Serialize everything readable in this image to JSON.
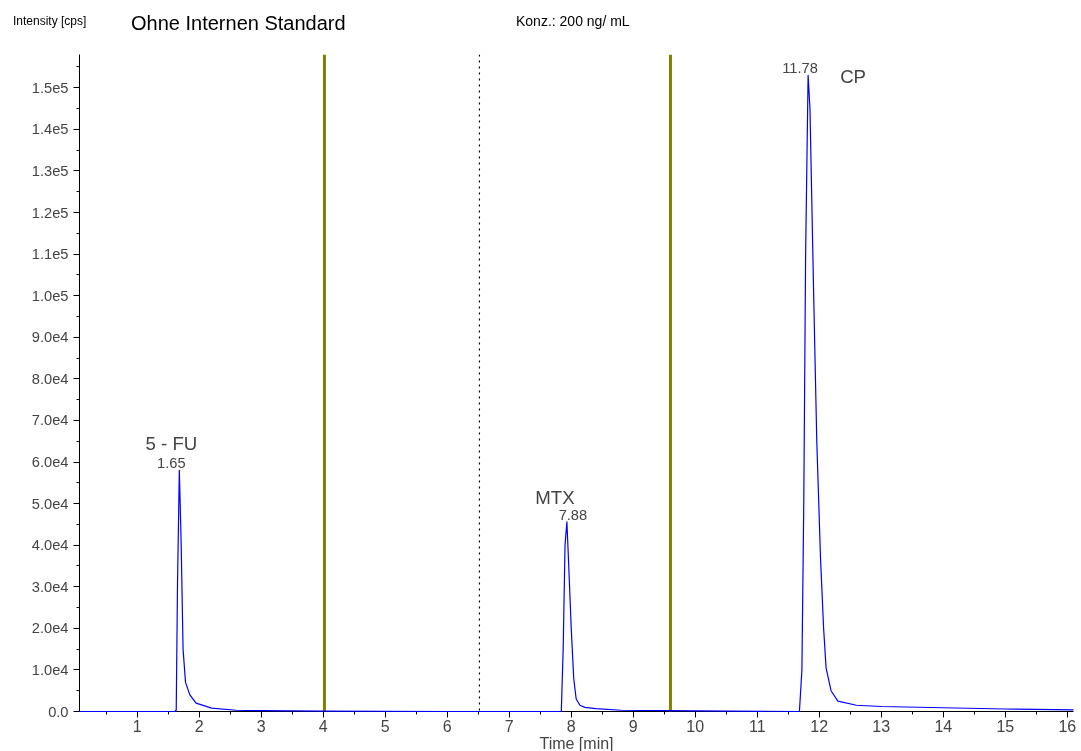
{
  "chart_data": {
    "type": "line",
    "title": "Ohne Internen Standard",
    "subtitle": "Konz.: 200 ng/ mL",
    "xlabel": "Time [min]",
    "ylabel": "Intensity [cps]",
    "x": [
      0.07,
      1.6,
      1.63,
      1.65,
      1.68,
      1.71,
      1.74,
      1.78,
      1.85,
      1.95,
      2.2,
      2.6,
      3.0,
      4.0,
      6.0,
      7.84,
      7.87,
      7.9,
      7.93,
      7.96,
      8.0,
      8.04,
      8.08,
      8.14,
      8.22,
      8.4,
      8.8,
      9.5,
      11.68,
      11.72,
      11.75,
      11.78,
      11.82,
      11.85,
      11.91,
      11.96,
      12.02,
      12.07,
      12.11,
      12.19,
      12.3,
      12.6,
      13.0,
      14.0,
      15.0,
      16.1
    ],
    "series": [
      {
        "color": "#0000ff",
        "values": [
          0,
          0,
          300,
          30000,
          58000,
          40000,
          15000,
          7000,
          4000,
          2000,
          800,
          300,
          200,
          100,
          0,
          0,
          15000,
          40000,
          45600,
          35000,
          20000,
          8000,
          3000,
          1500,
          1000,
          700,
          300,
          200,
          0,
          10000,
          50000,
          110000,
          153000,
          145000,
          100000,
          65000,
          37000,
          20000,
          10500,
          5000,
          2500,
          1500,
          1200,
          900,
          600,
          400
        ]
      }
    ],
    "xlim": [
      0.07,
      16.1
    ],
    "ylim": [
      0,
      158000
    ],
    "xticks": [
      1,
      2,
      3,
      4,
      5,
      6,
      7,
      8,
      9,
      10,
      11,
      12,
      13,
      14,
      15,
      16
    ],
    "yticks": [
      {
        "value": 0,
        "label": "0.0"
      },
      {
        "value": 10000,
        "label": "1.0e4"
      },
      {
        "value": 20000,
        "label": "2.0e4"
      },
      {
        "value": 30000,
        "label": "3.0e4"
      },
      {
        "value": 40000,
        "label": "4.0e4"
      },
      {
        "value": 50000,
        "label": "5.0e4"
      },
      {
        "value": 60000,
        "label": "6.0e4"
      },
      {
        "value": 70000,
        "label": "7.0e4"
      },
      {
        "value": 80000,
        "label": "8.0e4"
      },
      {
        "value": 90000,
        "label": "9.0e4"
      },
      {
        "value": 100000,
        "label": "1.0e5"
      },
      {
        "value": 110000,
        "label": "1.1e5"
      },
      {
        "value": 120000,
        "label": "1.2e5"
      },
      {
        "value": 130000,
        "label": "1.3e5"
      },
      {
        "value": 140000,
        "label": "1.4e5"
      },
      {
        "value": 150000,
        "label": "1.5e5"
      }
    ],
    "ref_lines": [
      {
        "axis": "x",
        "value": 4.02,
        "color": "#808000",
        "line_style": "solid"
      },
      {
        "axis": "x",
        "value": 6.52,
        "color": "#000000",
        "line_style": "dotted"
      },
      {
        "axis": "x",
        "value": 9.6,
        "color": "#808000",
        "line_style": "solid"
      }
    ],
    "annotations": [
      {
        "text": "5 - FU",
        "x": 1.68,
        "y": 58000
      },
      {
        "text": "1.65",
        "x": 1.68,
        "y": 58000
      },
      {
        "text": "MTX",
        "x": 7.93,
        "y": 45600
      },
      {
        "text": "7.88",
        "x": 7.93,
        "y": 45600
      },
      {
        "text": "11.78",
        "x": 11.82,
        "y": 153000
      },
      {
        "text": "CP",
        "x": 11.82,
        "y": 153000
      }
    ],
    "grid": false,
    "marker": "none",
    "line_style": "solid"
  }
}
